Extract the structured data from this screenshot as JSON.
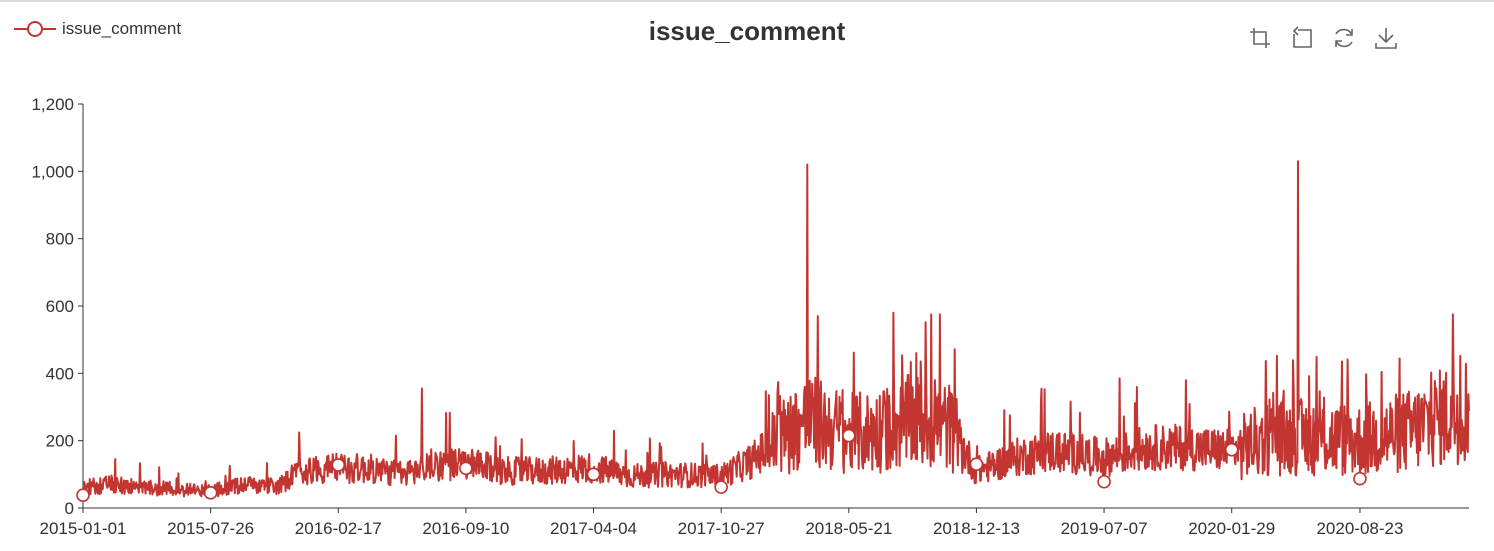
{
  "legend": {
    "label": "issue_comment"
  },
  "toolbox": {
    "icons": [
      "zoom-icon",
      "zoom-reset-icon",
      "restore-icon",
      "save-image-icon"
    ]
  },
  "colors": {
    "series": "#c23531",
    "axis": "#333333"
  },
  "chart_data": {
    "type": "line",
    "title": "issue_comment",
    "xlabel": "",
    "ylabel": "",
    "x_range": [
      "2015-01-01",
      "2021-02-15"
    ],
    "ylim": [
      0,
      1200
    ],
    "yticks": [
      0,
      200,
      400,
      600,
      800,
      1000,
      1200
    ],
    "ytick_labels": [
      "0",
      "200",
      "400",
      "600",
      "800",
      "1,000",
      "1,200"
    ],
    "xticks": [
      "2015-01-01",
      "2015-07-26",
      "2016-02-17",
      "2016-09-10",
      "2017-04-04",
      "2017-10-27",
      "2018-05-21",
      "2018-12-13",
      "2019-07-07",
      "2020-01-29",
      "2020-08-23"
    ],
    "grid": false,
    "legend_position": "top-left",
    "series": [
      {
        "name": "issue_comment",
        "line_profile": [
          [
            "2015-01-01",
            60
          ],
          [
            "2015-02-15",
            70
          ],
          [
            "2015-04-15",
            60
          ],
          [
            "2015-06-15",
            55
          ],
          [
            "2015-07-26",
            50
          ],
          [
            "2015-09-15",
            70
          ],
          [
            "2015-11-15",
            65
          ],
          [
            "2015-12-15",
            110
          ],
          [
            "2016-02-17",
            120
          ],
          [
            "2016-04-15",
            115
          ],
          [
            "2016-06-01",
            100
          ],
          [
            "2016-07-20",
            130
          ],
          [
            "2016-09-10",
            130
          ],
          [
            "2016-11-15",
            110
          ],
          [
            "2017-01-15",
            110
          ],
          [
            "2017-04-04",
            120
          ],
          [
            "2017-06-01",
            95
          ],
          [
            "2017-08-01",
            100
          ],
          [
            "2017-10-27",
            95
          ],
          [
            "2017-12-15",
            140
          ],
          [
            "2018-02-01",
            210
          ],
          [
            "2018-03-15",
            260
          ],
          [
            "2018-05-21",
            220
          ],
          [
            "2018-07-15",
            230
          ],
          [
            "2018-09-01",
            260
          ],
          [
            "2018-11-01",
            240
          ],
          [
            "2018-12-13",
            110
          ],
          [
            "2019-02-15",
            150
          ],
          [
            "2019-04-15",
            170
          ],
          [
            "2019-07-07",
            150
          ],
          [
            "2019-09-15",
            180
          ],
          [
            "2019-11-15",
            180
          ],
          [
            "2020-01-29",
            170
          ],
          [
            "2020-04-01",
            210
          ],
          [
            "2020-06-01",
            210
          ],
          [
            "2020-08-23",
            200
          ],
          [
            "2020-11-15",
            230
          ],
          [
            "2021-01-15",
            280
          ],
          [
            "2021-02-15",
            300
          ]
        ],
        "spikes": [
          [
            "2016-07-01",
            355
          ],
          [
            "2018-03-15",
            1020
          ],
          [
            "2018-04-01",
            570
          ],
          [
            "2018-08-01",
            580
          ],
          [
            "2018-10-01",
            575
          ],
          [
            "2018-10-15",
            575
          ],
          [
            "2019-08-01",
            385
          ],
          [
            "2020-05-15",
            1030
          ],
          [
            "2021-01-20",
            575
          ]
        ],
        "markers": [
          [
            "2015-01-01",
            38
          ],
          [
            "2015-07-26",
            45
          ],
          [
            "2016-02-17",
            128
          ],
          [
            "2016-09-10",
            118
          ],
          [
            "2017-04-04",
            100
          ],
          [
            "2017-10-27",
            62
          ],
          [
            "2018-05-21",
            215
          ],
          [
            "2018-12-13",
            130
          ],
          [
            "2019-07-07",
            78
          ],
          [
            "2020-01-29",
            173
          ],
          [
            "2020-08-23",
            87
          ]
        ]
      }
    ]
  }
}
